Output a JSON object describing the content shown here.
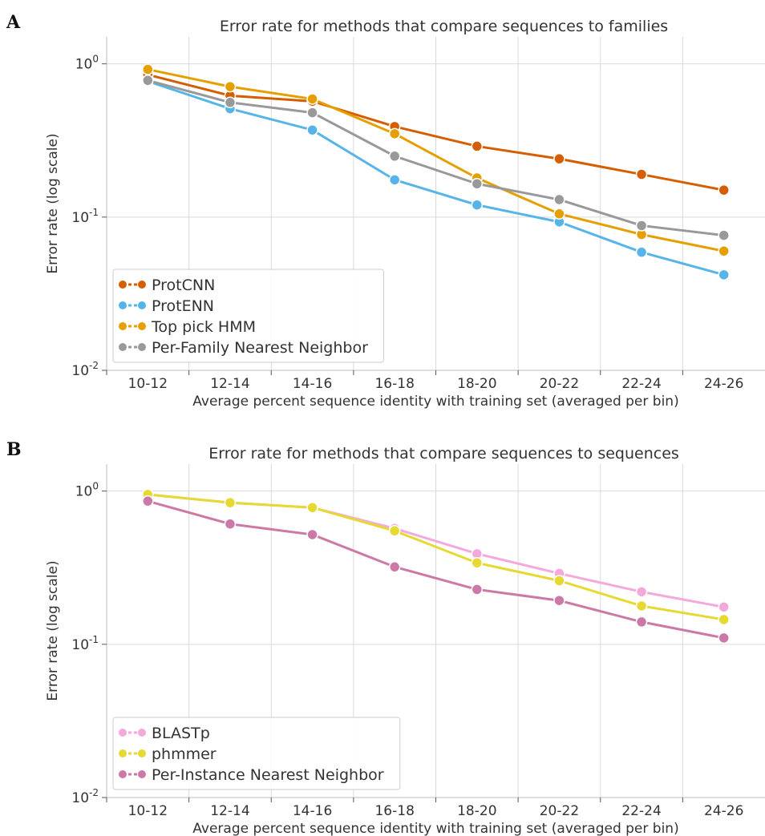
{
  "chart_data": [
    {
      "panel_label": "A",
      "type": "line",
      "title": "Error rate for methods that compare sequences to families",
      "xlabel": "Average percent sequence identity with training set (averaged per bin)",
      "ylabel": "Error rate (log scale)",
      "y_scale": "log",
      "ylim": [
        0.01,
        1.5
      ],
      "y_ticks": [
        {
          "value": 1,
          "base": "10",
          "exp": "0"
        },
        {
          "value": 0.1,
          "base": "10",
          "exp": "-1"
        },
        {
          "value": 0.01,
          "base": "10",
          "exp": "-2"
        }
      ],
      "categories": [
        "10-12",
        "12-14",
        "14-16",
        "16-18",
        "18-20",
        "20-22",
        "22-24",
        "24-26"
      ],
      "grid": true,
      "legend_position": "bottom-left",
      "series": [
        {
          "name": "ProtCNN",
          "color": "#D55E00",
          "values": [
            0.85,
            0.62,
            0.57,
            0.39,
            0.29,
            0.24,
            0.19,
            0.15
          ]
        },
        {
          "name": "ProtENN",
          "color": "#56B4E9",
          "values": [
            0.77,
            0.51,
            0.37,
            0.175,
            0.12,
            0.093,
            0.059,
            0.042
          ]
        },
        {
          "name": "Top pick HMM",
          "color": "#E69F00",
          "values": [
            0.92,
            0.71,
            0.59,
            0.35,
            0.18,
            0.105,
            0.077,
            0.06
          ]
        },
        {
          "name": "Per-Family Nearest Neighbor",
          "color": "#999999",
          "values": [
            0.78,
            0.56,
            0.48,
            0.25,
            0.165,
            0.13,
            0.088,
            0.076
          ]
        }
      ]
    },
    {
      "panel_label": "B",
      "type": "line",
      "title": "Error rate for methods that compare sequences to sequences",
      "xlabel": "Average percent sequence identity with training set (averaged per bin)",
      "ylabel": "Error rate (log scale)",
      "y_scale": "log",
      "ylim": [
        0.01,
        1.5
      ],
      "y_ticks": [
        {
          "value": 1,
          "base": "10",
          "exp": "0"
        },
        {
          "value": 0.1,
          "base": "10",
          "exp": "-1"
        },
        {
          "value": 0.01,
          "base": "10",
          "exp": "-2"
        }
      ],
      "categories": [
        "10-12",
        "12-14",
        "14-16",
        "16-18",
        "18-20",
        "20-22",
        "22-24",
        "24-26"
      ],
      "grid": true,
      "legend_position": "bottom-left",
      "series": [
        {
          "name": "BLASTp",
          "color": "#F4A9DB",
          "values": [
            0.95,
            0.84,
            0.78,
            0.57,
            0.39,
            0.29,
            0.22,
            0.175
          ]
        },
        {
          "name": "phmmer",
          "color": "#E5D932",
          "values": [
            0.95,
            0.84,
            0.78,
            0.55,
            0.34,
            0.26,
            0.178,
            0.145
          ]
        },
        {
          "name": "Per-Instance Nearest Neighbor",
          "color": "#CC79A7",
          "values": [
            0.86,
            0.61,
            0.52,
            0.32,
            0.228,
            0.193,
            0.14,
            0.11
          ]
        }
      ]
    }
  ]
}
